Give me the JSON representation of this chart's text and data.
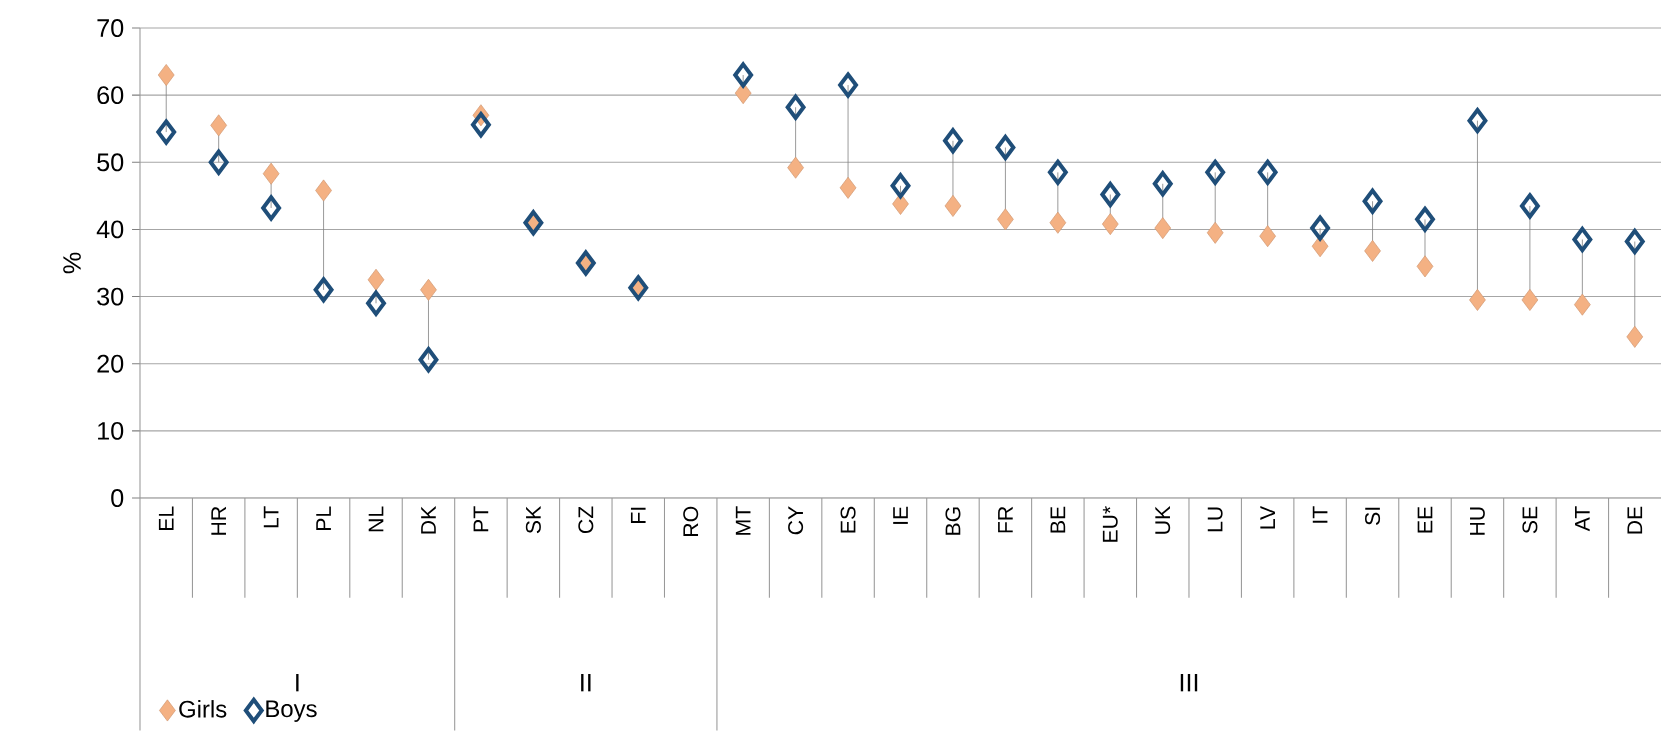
{
  "chart_data": {
    "type": "scatter",
    "ylabel": "%",
    "categories": [
      "EL",
      "HR",
      "LT",
      "PL",
      "NL",
      "DK",
      "PT",
      "SK",
      "CZ",
      "FI",
      "RO",
      "MT",
      "CY",
      "ES",
      "IE",
      "BG",
      "FR",
      "BE",
      "EU*",
      "UK",
      "LU",
      "LV",
      "IT",
      "SI",
      "EE",
      "HU",
      "SE",
      "AT",
      "DE"
    ],
    "series": [
      {
        "name": "Girls",
        "color": "#f4b183",
        "marker": "diamond",
        "values": [
          63,
          55.5,
          48.3,
          45.8,
          32.5,
          31,
          57,
          41,
          35,
          31.3,
          null,
          60.3,
          49.2,
          46.2,
          43.8,
          43.5,
          41.5,
          41,
          40.8,
          40.2,
          39.5,
          39,
          37.5,
          36.8,
          34.5,
          29.5,
          29.5,
          28.8,
          24
        ]
      },
      {
        "name": "Boys",
        "color": "#1f4e79",
        "marker": "diamond",
        "values": [
          54.5,
          50,
          43.2,
          31,
          29,
          20.6,
          55.6,
          41,
          35,
          31.3,
          null,
          63,
          58.2,
          61.5,
          46.5,
          53.2,
          52.2,
          48.5,
          45.2,
          46.8,
          48.5,
          48.5,
          40.2,
          44.2,
          41.5,
          56.2,
          43.5,
          38.5,
          38.2
        ]
      }
    ],
    "ylim": [
      0,
      70
    ],
    "yticks": [
      0,
      10,
      20,
      30,
      40,
      50,
      60,
      70
    ],
    "grid": "y",
    "legend": "bottom left",
    "annotations": [
      "I",
      "II",
      "III"
    ]
  }
}
